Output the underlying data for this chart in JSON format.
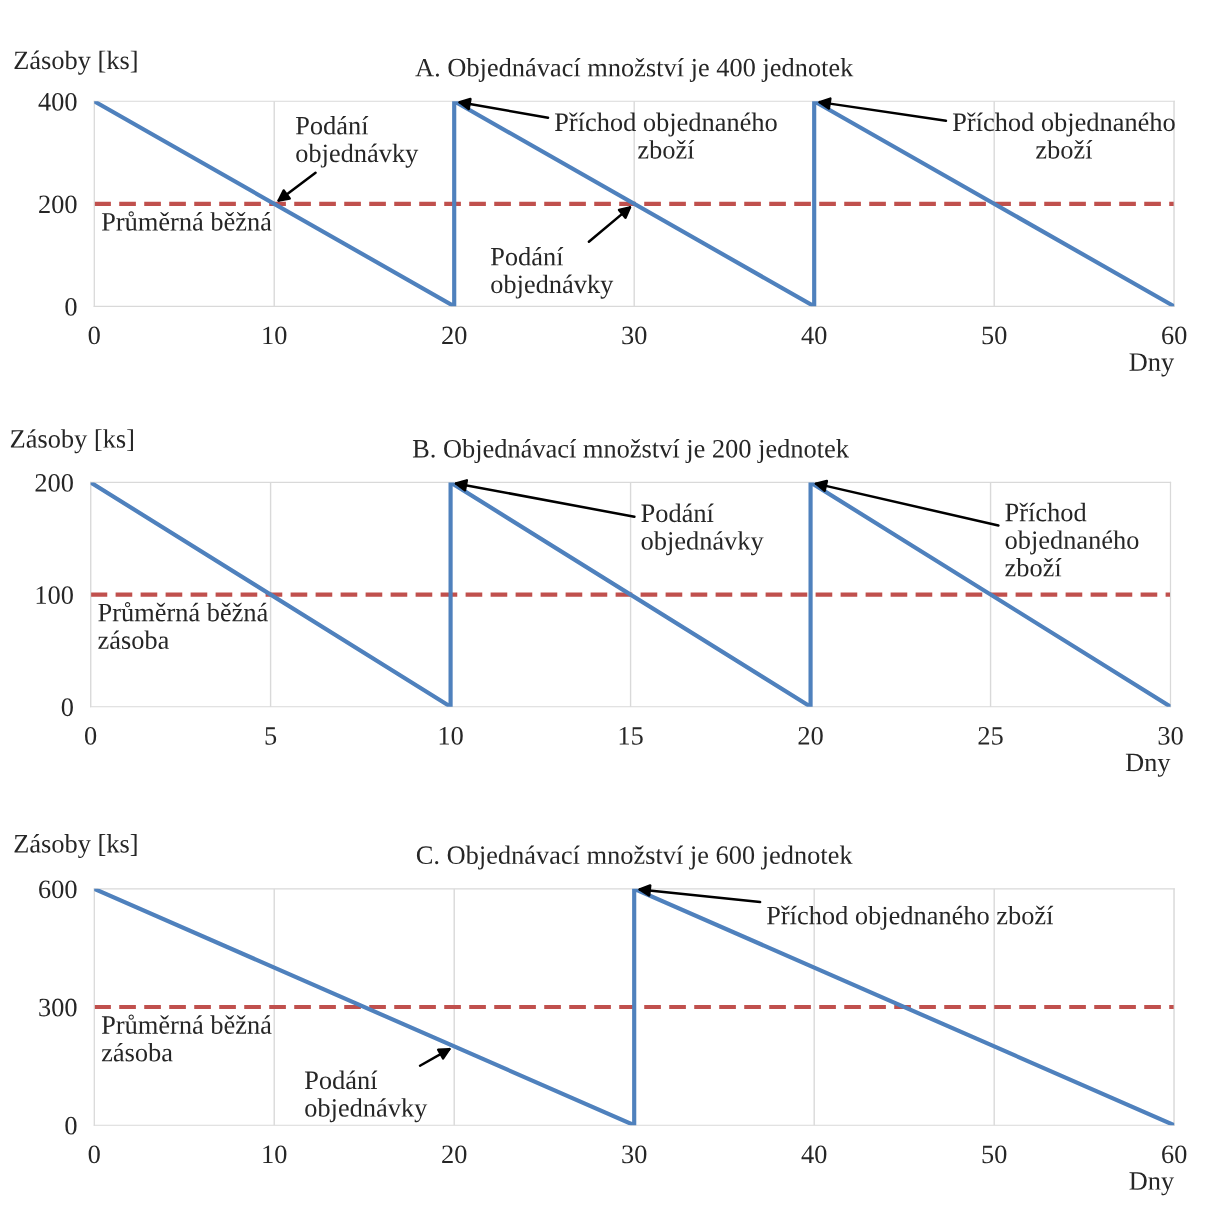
{
  "chart_data": [
    {
      "type": "line",
      "title": "A. Objednávací množství je 400 jednotek",
      "ylabel": "Zásoby [ks]",
      "xlabel": "Dny",
      "series": [
        {
          "color": "#4f81bd",
          "x": [
            0,
            20,
            20,
            40,
            40,
            60
          ],
          "values": [
            400,
            0,
            400,
            0,
            400,
            0
          ]
        }
      ],
      "xlim": [
        0,
        60
      ],
      "xticks": [
        0,
        10,
        20,
        30,
        40,
        50,
        60
      ],
      "ylim": [
        0,
        400
      ],
      "yticks": [
        0,
        200,
        400
      ],
      "grid": "x",
      "legend": false,
      "marker": "none",
      "line_style": "solid",
      "ref_lines": [
        {
          "axis": "y",
          "value": 200,
          "label": "Průměrná běžná",
          "color": "#c0504d",
          "line_style": "dashed"
        }
      ],
      "annotations": [
        {
          "text": "Podání\nobjednávky",
          "x": 10,
          "y": 200
        },
        {
          "text": "Příchod objednaného\nzboží",
          "x": 20,
          "y": 400
        },
        {
          "text": "Příchod objednaného\nzboží",
          "x": 40,
          "y": 400
        },
        {
          "text": "Podání\nobjednávky",
          "x": 30,
          "y": 200
        }
      ]
    },
    {
      "type": "line",
      "title": "B. Objednávací množství je 200 jednotek",
      "ylabel": "Zásoby [ks]",
      "xlabel": "Dny",
      "series": [
        {
          "color": "#4f81bd",
          "x": [
            0,
            10,
            10,
            20,
            20,
            30
          ],
          "values": [
            200,
            0,
            200,
            0,
            200,
            0
          ]
        }
      ],
      "xlim": [
        0,
        30
      ],
      "xticks": [
        0,
        5,
        10,
        15,
        20,
        25,
        30
      ],
      "ylim": [
        0,
        200
      ],
      "yticks": [
        0,
        100,
        200
      ],
      "grid": "x",
      "legend": false,
      "marker": "none",
      "line_style": "solid",
      "ref_lines": [
        {
          "axis": "y",
          "value": 100,
          "label": "Průměrná běžná\nzásoba",
          "color": "#c0504d",
          "line_style": "dashed"
        }
      ],
      "annotations": [
        {
          "text": "Podání\nobjednávky",
          "x": 10,
          "y": 200
        },
        {
          "text": "Příchod\nobjednaného\nzboží",
          "x": 20,
          "y": 200
        }
      ]
    },
    {
      "type": "line",
      "title": "C. Objednávací množství je 600 jednotek",
      "ylabel": "Zásoby [ks]",
      "xlabel": "Dny",
      "series": [
        {
          "color": "#4f81bd",
          "x": [
            0,
            30,
            30,
            60
          ],
          "values": [
            600,
            0,
            600,
            0
          ]
        }
      ],
      "xlim": [
        0,
        60
      ],
      "xticks": [
        0,
        10,
        20,
        30,
        40,
        50,
        60
      ],
      "ylim": [
        0,
        600
      ],
      "yticks": [
        0,
        300,
        600
      ],
      "grid": "x",
      "legend": false,
      "marker": "none",
      "line_style": "solid",
      "ref_lines": [
        {
          "axis": "y",
          "value": 300,
          "label": "Průměrná běžná\nzásoba",
          "color": "#c0504d",
          "line_style": "dashed"
        }
      ],
      "annotations": [
        {
          "text": "Příchod objednaného zboží",
          "x": 30,
          "y": 600
        },
        {
          "text": "Podání\nobjednávky",
          "x": 20,
          "y": 200
        }
      ]
    }
  ]
}
